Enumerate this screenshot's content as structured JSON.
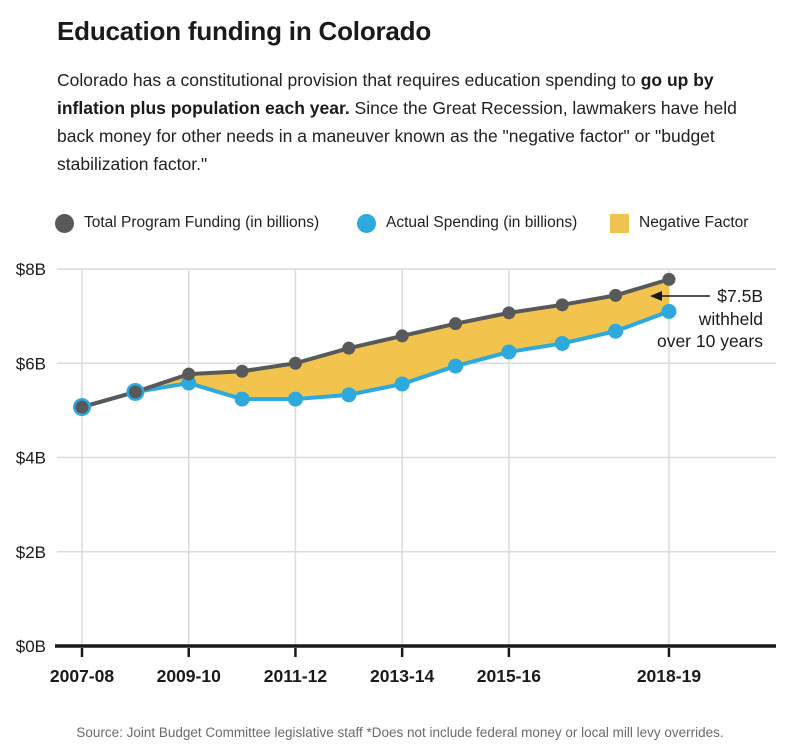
{
  "header": {
    "title": "Education funding in Colorado",
    "subtitle_pre": "Colorado has a constitutional provision that requires education spending to ",
    "subtitle_bold": "go up by inflation plus population each year.",
    "subtitle_post": " Since the Great Recession, lawmakers have held back money for other needs in a maneuver known as the \"negative factor\" or \"budget stabilization factor.\""
  },
  "legend": {
    "items": [
      {
        "label": "Total Program Funding (in billions)",
        "color": "#58595B",
        "shape": "circle",
        "marker": "gray-dot-marker"
      },
      {
        "label": "Actual Spending (in billions)",
        "color": "#2EA9DE",
        "shape": "circle",
        "marker": "blue-dot-marker"
      },
      {
        "label": "Negative Factor",
        "color": "#F2C44D",
        "shape": "square",
        "marker": "yellow-square-marker"
      }
    ]
  },
  "chart_data": {
    "type": "line",
    "title": "Education funding in Colorado",
    "x": [
      "2007-08",
      "2008-09",
      "2009-10",
      "2010-11",
      "2011-12",
      "2012-13",
      "2013-14",
      "2014-15",
      "2015-16",
      "2016-17",
      "2017-18",
      "2018-19"
    ],
    "series": [
      {
        "name": "Total Program Funding (in billions)",
        "color": "#58595B",
        "values": [
          5.07,
          5.39,
          5.77,
          5.83,
          6.0,
          6.32,
          6.58,
          6.84,
          7.07,
          7.24,
          7.44,
          7.78
        ]
      },
      {
        "name": "Actual Spending (in billions)",
        "color": "#2EA9DE",
        "values": [
          5.07,
          5.39,
          5.58,
          5.24,
          5.24,
          5.33,
          5.56,
          5.94,
          6.24,
          6.42,
          6.68,
          7.1
        ]
      }
    ],
    "area_between": {
      "name": "Negative Factor",
      "color": "#F2C44D"
    },
    "xlabel": "",
    "ylabel": "",
    "ylim": [
      0,
      8
    ],
    "y_ticks": [
      {
        "value": 0,
        "label": "$0B"
      },
      {
        "value": 2,
        "label": "$2B"
      },
      {
        "value": 4,
        "label": "$4B"
      },
      {
        "value": 6,
        "label": "$6B"
      },
      {
        "value": 8,
        "label": "$8B"
      }
    ],
    "x_tick_indices": [
      0,
      2,
      4,
      6,
      8,
      11
    ],
    "x_tick_labels": [
      "2007-08",
      "2009-10",
      "2011-12",
      "2013-14",
      "2015-16",
      "2018-19"
    ],
    "grid": true,
    "legend_position": "top",
    "annotation": {
      "lines": [
        "$7.5B",
        "withheld",
        "over 10 years"
      ],
      "arrow_direction": "left"
    }
  },
  "footer": {
    "source": "Source: Joint Budget Committee legislative staff *Does not include federal money or local mill levy overrides."
  }
}
